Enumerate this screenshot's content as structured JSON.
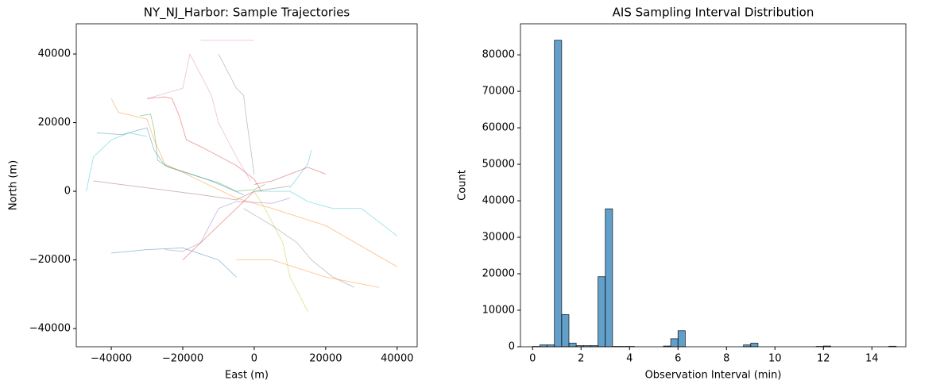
{
  "chart_data": [
    {
      "type": "line",
      "title": "NY_NJ_Harbor: Sample Trajectories",
      "xlabel": "East (m)",
      "ylabel": "North (m)",
      "xlim": [
        -49800,
        45600
      ],
      "ylim": [
        -45300,
        48800
      ],
      "xticks": [
        {
          "value": -40000,
          "label": "−40000"
        },
        {
          "value": -20000,
          "label": "−20000"
        },
        0,
        20000,
        40000
      ],
      "yticks": [
        {
          "value": -40000,
          "label": "−40000"
        },
        {
          "value": -20000,
          "label": "−20000"
        },
        0,
        20000,
        40000
      ],
      "series": [
        {
          "color": "#d62728",
          "x": [
            -30000,
            -25000,
            -23000,
            -21000,
            -19000,
            -14000,
            -5000,
            0,
            2000
          ],
          "values": [
            27000,
            27500,
            27000,
            22000,
            15000,
            12500,
            7500,
            3500,
            0
          ]
        },
        {
          "color": "#2ca02c",
          "x": [
            -32000,
            -29000,
            -28000,
            -27000,
            -24000,
            -10000,
            -5000,
            0,
            3000
          ],
          "values": [
            22000,
            22500,
            18000,
            9000,
            7000,
            2500,
            0,
            500,
            2000
          ]
        },
        {
          "color": "#1f77b4",
          "x": [
            -44000,
            -37000,
            -30000,
            -28000,
            -25000,
            -12000,
            -3000
          ],
          "values": [
            17000,
            16500,
            18500,
            12000,
            7500,
            3000,
            -1000
          ]
        },
        {
          "color": "#ff7f0e",
          "x": [
            -40000,
            -38000,
            -30000,
            -28000,
            -25000,
            -15000,
            -5000,
            5000,
            20000,
            40000
          ],
          "values": [
            27000,
            23000,
            21000,
            15000,
            8000,
            3000,
            -2000,
            -5000,
            -10000,
            -22000
          ]
        },
        {
          "color": "#9467bd",
          "x": [
            -25000,
            -20000,
            -15000,
            -10000,
            -5000,
            5000,
            10000
          ],
          "values": [
            -17000,
            -17500,
            -15000,
            -5000,
            -3000,
            -3500,
            -2000
          ]
        },
        {
          "color": "#8c564b",
          "x": [
            -45000,
            -30000,
            -15000,
            -5000,
            0,
            10000
          ],
          "values": [
            3000,
            1000,
            -1000,
            -2500,
            0,
            1500
          ]
        },
        {
          "color": "#e377c2",
          "x": [
            -30000,
            -20000,
            -18000,
            -12000,
            -10000,
            -5000,
            -1000
          ],
          "values": [
            27000,
            30000,
            40000,
            28000,
            20000,
            10000,
            3000
          ]
        },
        {
          "color": "#7f7f7f",
          "x": [
            -3000,
            5000,
            12000,
            16000,
            22000,
            28000
          ],
          "values": [
            -5000,
            -10000,
            -15000,
            -20000,
            -25000,
            -28000
          ]
        },
        {
          "color": "#bcbd22",
          "x": [
            0,
            3000,
            8000,
            10000,
            15000
          ],
          "values": [
            0,
            -5000,
            -15000,
            -25000,
            -35000
          ]
        },
        {
          "color": "#17becf",
          "x": [
            -47000,
            -45000,
            -40000,
            -35000,
            -30000
          ],
          "values": [
            0,
            10000,
            15000,
            17000,
            16000
          ]
        },
        {
          "color": "#17becf",
          "x": [
            0,
            10000,
            15000,
            22000,
            30000,
            40000
          ],
          "values": [
            0,
            0,
            -3000,
            -5000,
            -5000,
            -13000
          ]
        },
        {
          "color": "#17becf",
          "x": [
            10000,
            15000,
            16000
          ],
          "values": [
            1000,
            8000,
            12000
          ]
        },
        {
          "color": "#d62728",
          "x": [
            -20000,
            -10000,
            -5000,
            0
          ],
          "values": [
            -20000,
            -10000,
            -5000,
            0
          ]
        },
        {
          "color": "#1f77b4",
          "x": [
            -40000,
            -30000,
            -20000,
            -10000,
            -5000
          ],
          "values": [
            -18000,
            -17000,
            -16500,
            -20000,
            -25000
          ]
        },
        {
          "color": "#ff7f0e",
          "x": [
            -5000,
            5000,
            20000,
            35000
          ],
          "values": [
            -20000,
            -20000,
            -25000,
            -28000
          ]
        },
        {
          "color": "#7f7f7f",
          "x": [
            -10000,
            -5000,
            -3000,
            -2000,
            0
          ],
          "values": [
            40000,
            30000,
            28000,
            20000,
            5000
          ]
        },
        {
          "color": "#d62728",
          "x": [
            0,
            5000,
            10000,
            15000,
            20000
          ],
          "values": [
            2000,
            3000,
            5000,
            7000,
            5000
          ]
        },
        {
          "color": "#e377c2",
          "x": [
            -15000,
            0
          ],
          "values": [
            44000,
            44000
          ]
        }
      ]
    },
    {
      "type": "histogram",
      "title": "AIS Sampling Interval Distribution",
      "xlabel": "Observation Interval (min)",
      "ylabel": "Count",
      "color": "#1f77b4",
      "xlim": [
        -0.5,
        15.4
      ],
      "ylim": [
        0,
        88500
      ],
      "xticks": [
        0,
        2,
        4,
        6,
        8,
        10,
        12,
        14
      ],
      "yticks": [
        0,
        10000,
        20000,
        30000,
        40000,
        50000,
        60000,
        70000,
        80000
      ],
      "bins": [
        0,
        0.3,
        0.6,
        0.9,
        1.2,
        1.5,
        1.8,
        2.1,
        2.4,
        2.7,
        3,
        3.3,
        3.6,
        3.9,
        4.2,
        4.5,
        4.8,
        5.1,
        5.4,
        5.7,
        6,
        6.3,
        6.6,
        6.9,
        7.2,
        7.5,
        7.8,
        8.1,
        8.4,
        8.7,
        9,
        9.3,
        9.6,
        9.9,
        10.2,
        10.5,
        10.8,
        11.1,
        11.4,
        11.7,
        12,
        12.3,
        12.6,
        12.9,
        13.2,
        13.5,
        13.8,
        14.1,
        14.4,
        14.7,
        15
      ],
      "values": [
        100,
        500,
        500,
        84000,
        8800,
        1000,
        300,
        300,
        300,
        19200,
        37800,
        100,
        100,
        100,
        0,
        0,
        0,
        0,
        200,
        2200,
        4400,
        0,
        0,
        0,
        0,
        0,
        0,
        0,
        0,
        500,
        1000,
        0,
        0,
        0,
        0,
        0,
        0,
        0,
        0,
        100,
        200,
        0,
        0,
        0,
        0,
        0,
        0,
        0,
        0,
        150
      ]
    }
  ]
}
